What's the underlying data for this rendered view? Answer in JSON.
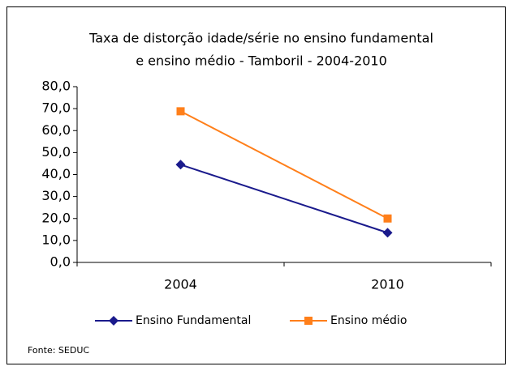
{
  "chart_data": {
    "type": "line",
    "title": [
      "Taxa de distorção idade/série no ensino fundamental",
      "e ensino médio - Tamboril -  2004-2010"
    ],
    "categories": [
      "2004",
      "2010"
    ],
    "series": [
      {
        "name": "Ensino Fundamental",
        "color": "#1a1a8c",
        "marker": "diamond",
        "values": [
          44.5,
          13.5
        ]
      },
      {
        "name": "Ensino médio",
        "color": "#ff7f1a",
        "marker": "square",
        "values": [
          68.8,
          20.0
        ]
      }
    ],
    "ylim": [
      0,
      80
    ],
    "yticks": [
      {
        "value": 0,
        "label": "0,0"
      },
      {
        "value": 10,
        "label": "10,0"
      },
      {
        "value": 20,
        "label": "20,0"
      },
      {
        "value": 30,
        "label": "30,0"
      },
      {
        "value": 40,
        "label": "40,0"
      },
      {
        "value": 50,
        "label": "50,0"
      },
      {
        "value": 60,
        "label": "60,0"
      },
      {
        "value": 70,
        "label": "70,0"
      },
      {
        "value": 80,
        "label": "80,0"
      }
    ],
    "legend": "bottom",
    "source": "Fonte: SEDUC"
  }
}
